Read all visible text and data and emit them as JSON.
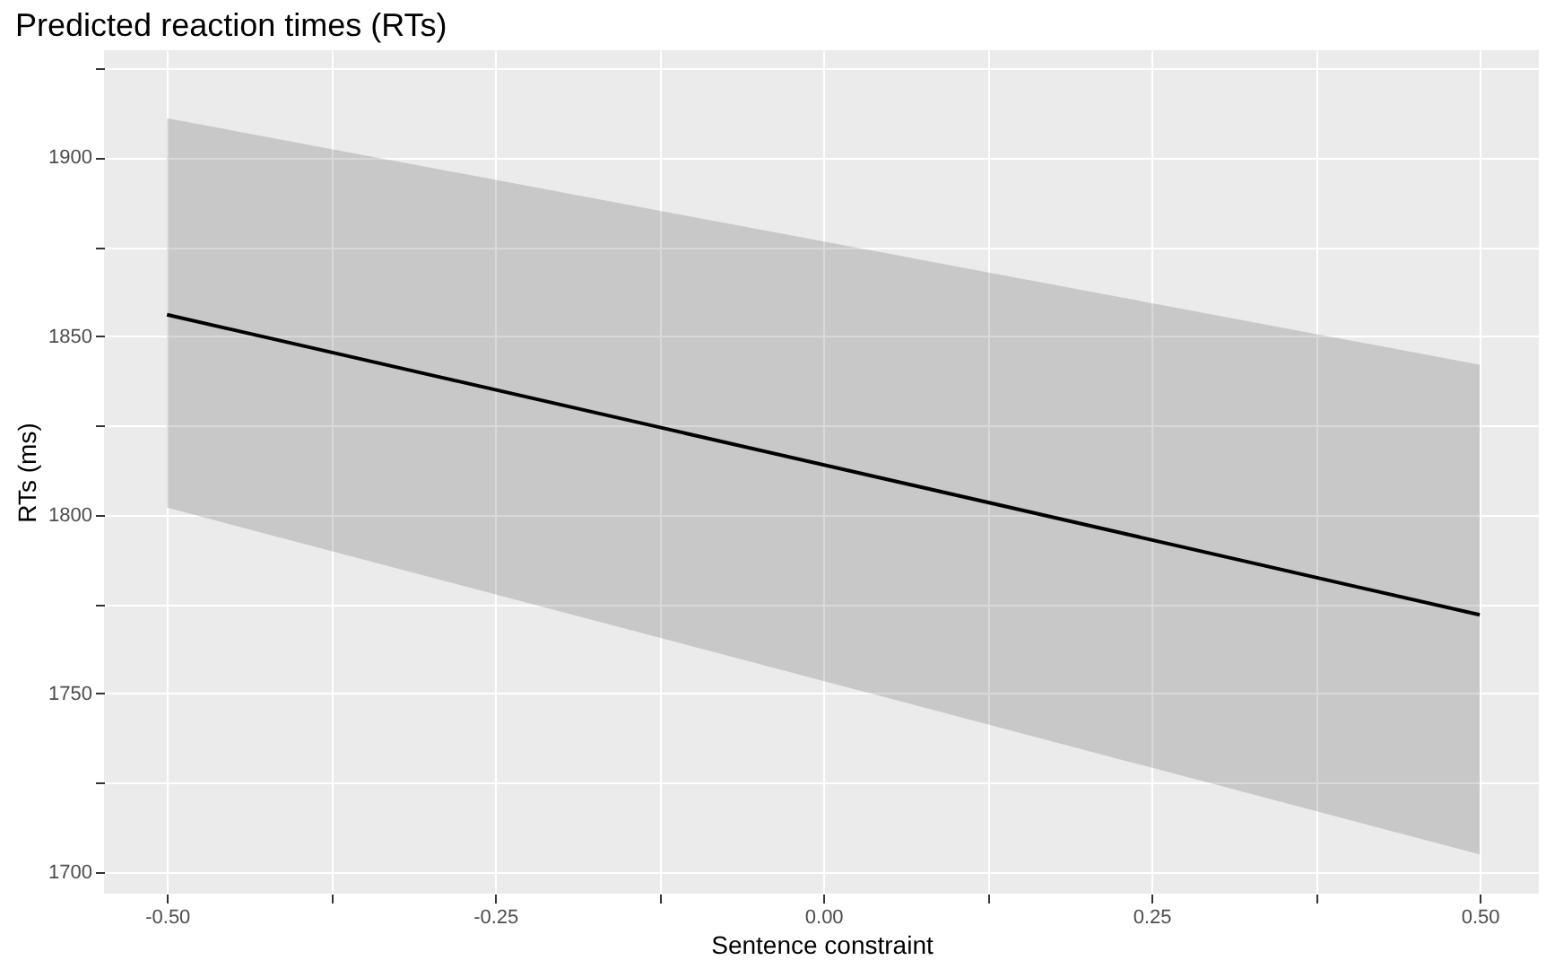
{
  "chart_data": {
    "type": "line",
    "title": "Predicted reaction times (RTs)",
    "xlabel": "Sentence constraint",
    "ylabel": "RTs (ms)",
    "x": [
      -0.5,
      0.5
    ],
    "series": [
      {
        "color": "#000000",
        "values": [
          1856,
          1772
        ],
        "lower": [
          1802,
          1705
        ],
        "upper": [
          1911,
          1842
        ]
      }
    ],
    "xlim": [
      -0.548,
      0.545
    ],
    "ylim": [
      1694,
      1930
    ],
    "xticks": [
      {
        "value": -0.5,
        "label": "-0.50"
      },
      {
        "value": -0.375,
        "label": null
      },
      {
        "value": -0.25,
        "label": "-0.25"
      },
      {
        "value": -0.125,
        "label": null
      },
      {
        "value": 0,
        "label": "0.00"
      },
      {
        "value": 0.125,
        "label": null
      },
      {
        "value": 0.25,
        "label": "0.25"
      },
      {
        "value": 0.375,
        "label": null
      },
      {
        "value": 0.5,
        "label": "0.50"
      }
    ],
    "yticks": [
      1700,
      {
        "value": 1725,
        "label": null
      },
      1750,
      {
        "value": 1775,
        "label": null
      },
      1800,
      {
        "value": 1825,
        "label": null
      },
      1850,
      {
        "value": 1875,
        "label": null
      },
      1900,
      {
        "value": 1925,
        "label": null
      }
    ],
    "grid": true,
    "line_style": "solid",
    "marker": "none"
  }
}
